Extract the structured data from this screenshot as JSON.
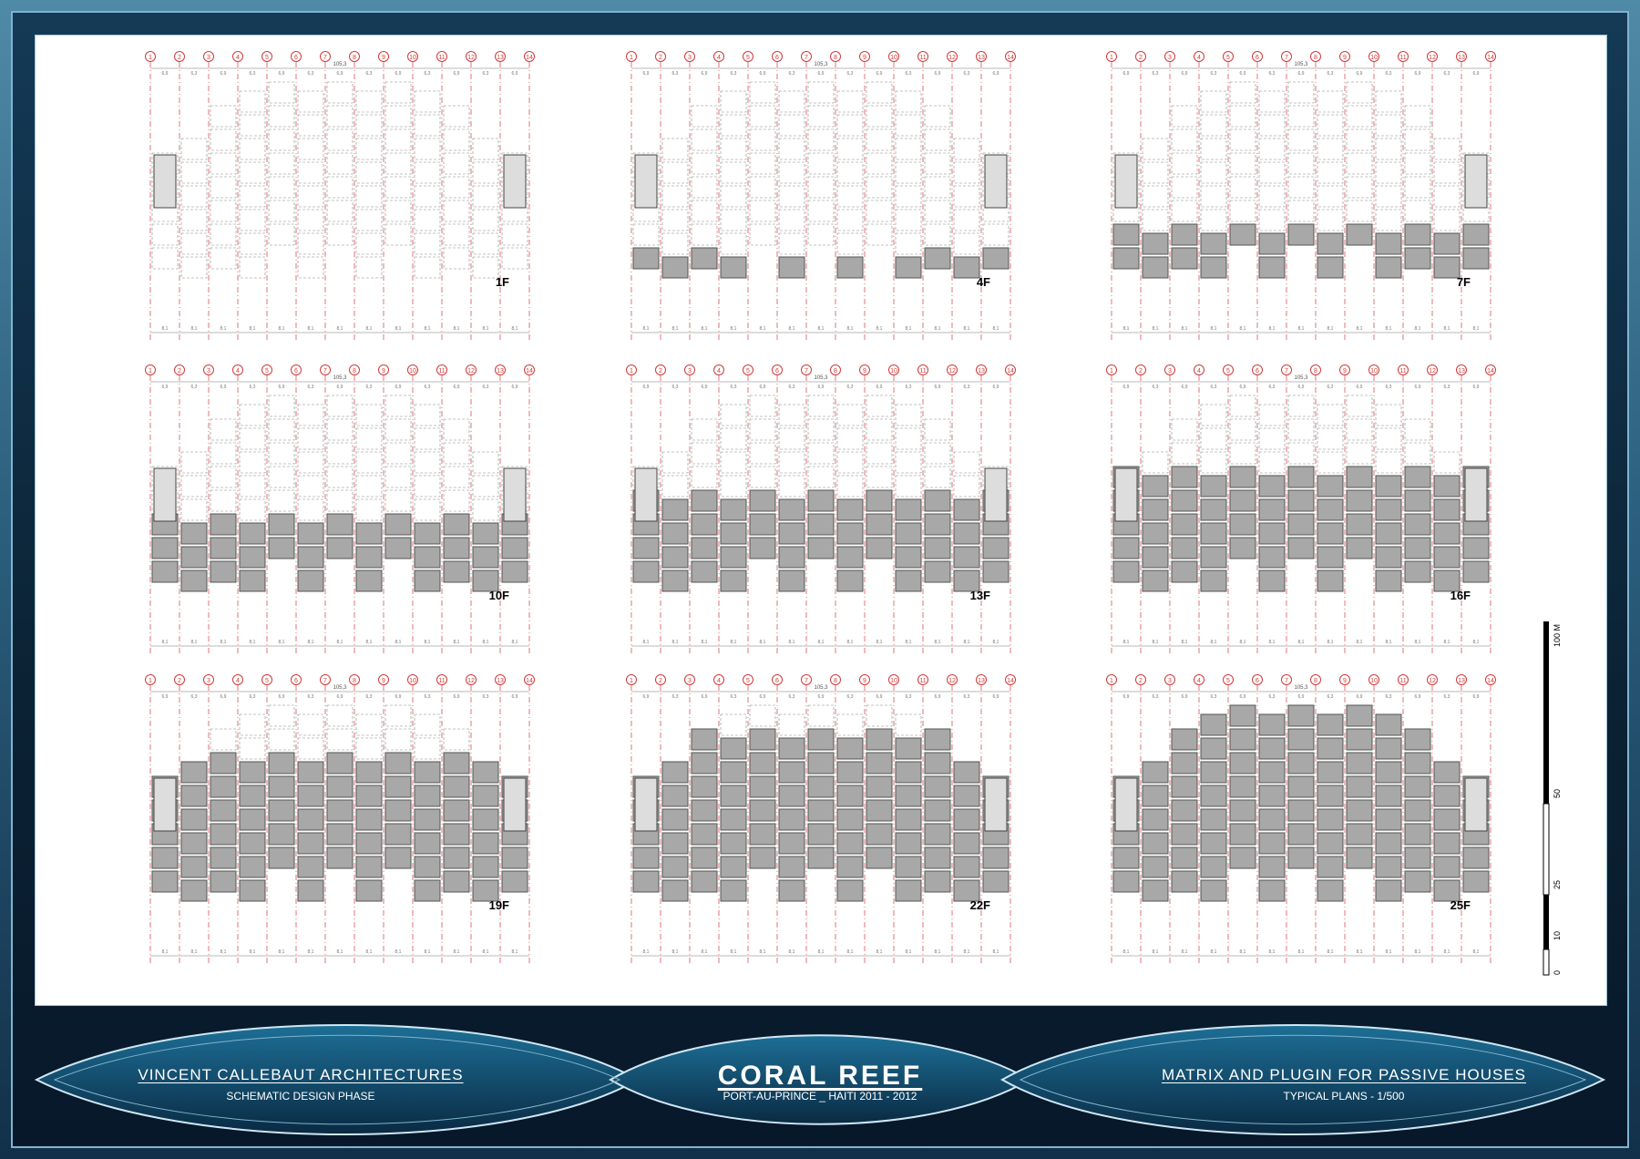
{
  "footer": {
    "studio": "VINCENT CALLEBAUT ARCHITECTURES",
    "phase": "SCHEMATIC DESIGN PHASE",
    "project": "CORAL REEF",
    "location": "PORT-AU-PRINCE _ HAITI 2011 - 2012",
    "subject": "MATRIX AND PLUGIN FOR PASSIVE HOUSES",
    "drawing": "TYPICAL PLANS - 1/500"
  },
  "plans": [
    {
      "floor": "1F",
      "fill_rows": 0
    },
    {
      "floor": "4F",
      "fill_rows": 1
    },
    {
      "floor": "7F",
      "fill_rows": 2
    },
    {
      "floor": "10F",
      "fill_rows": 3
    },
    {
      "floor": "13F",
      "fill_rows": 4
    },
    {
      "floor": "16F",
      "fill_rows": 5
    },
    {
      "floor": "19F",
      "fill_rows": 6
    },
    {
      "floor": "22F",
      "fill_rows": 7
    },
    {
      "floor": "25F",
      "fill_rows": 8
    }
  ],
  "grid": {
    "axes": [
      "1",
      "2",
      "3",
      "4",
      "5",
      "6",
      "7",
      "8",
      "9",
      "10",
      "11",
      "12",
      "13",
      "14"
    ],
    "overall_dim": "105,3",
    "top_dims": [
      "6,9",
      "6,3"
    ],
    "bottom_dim": "8,1"
  },
  "scale_bar": {
    "labels": [
      "0",
      "10",
      "25",
      "50",
      "100 M"
    ]
  },
  "colors": {
    "grid_red": "#d23a3a",
    "module_fill": "#a8a8a8",
    "frame": "#0b2234"
  }
}
